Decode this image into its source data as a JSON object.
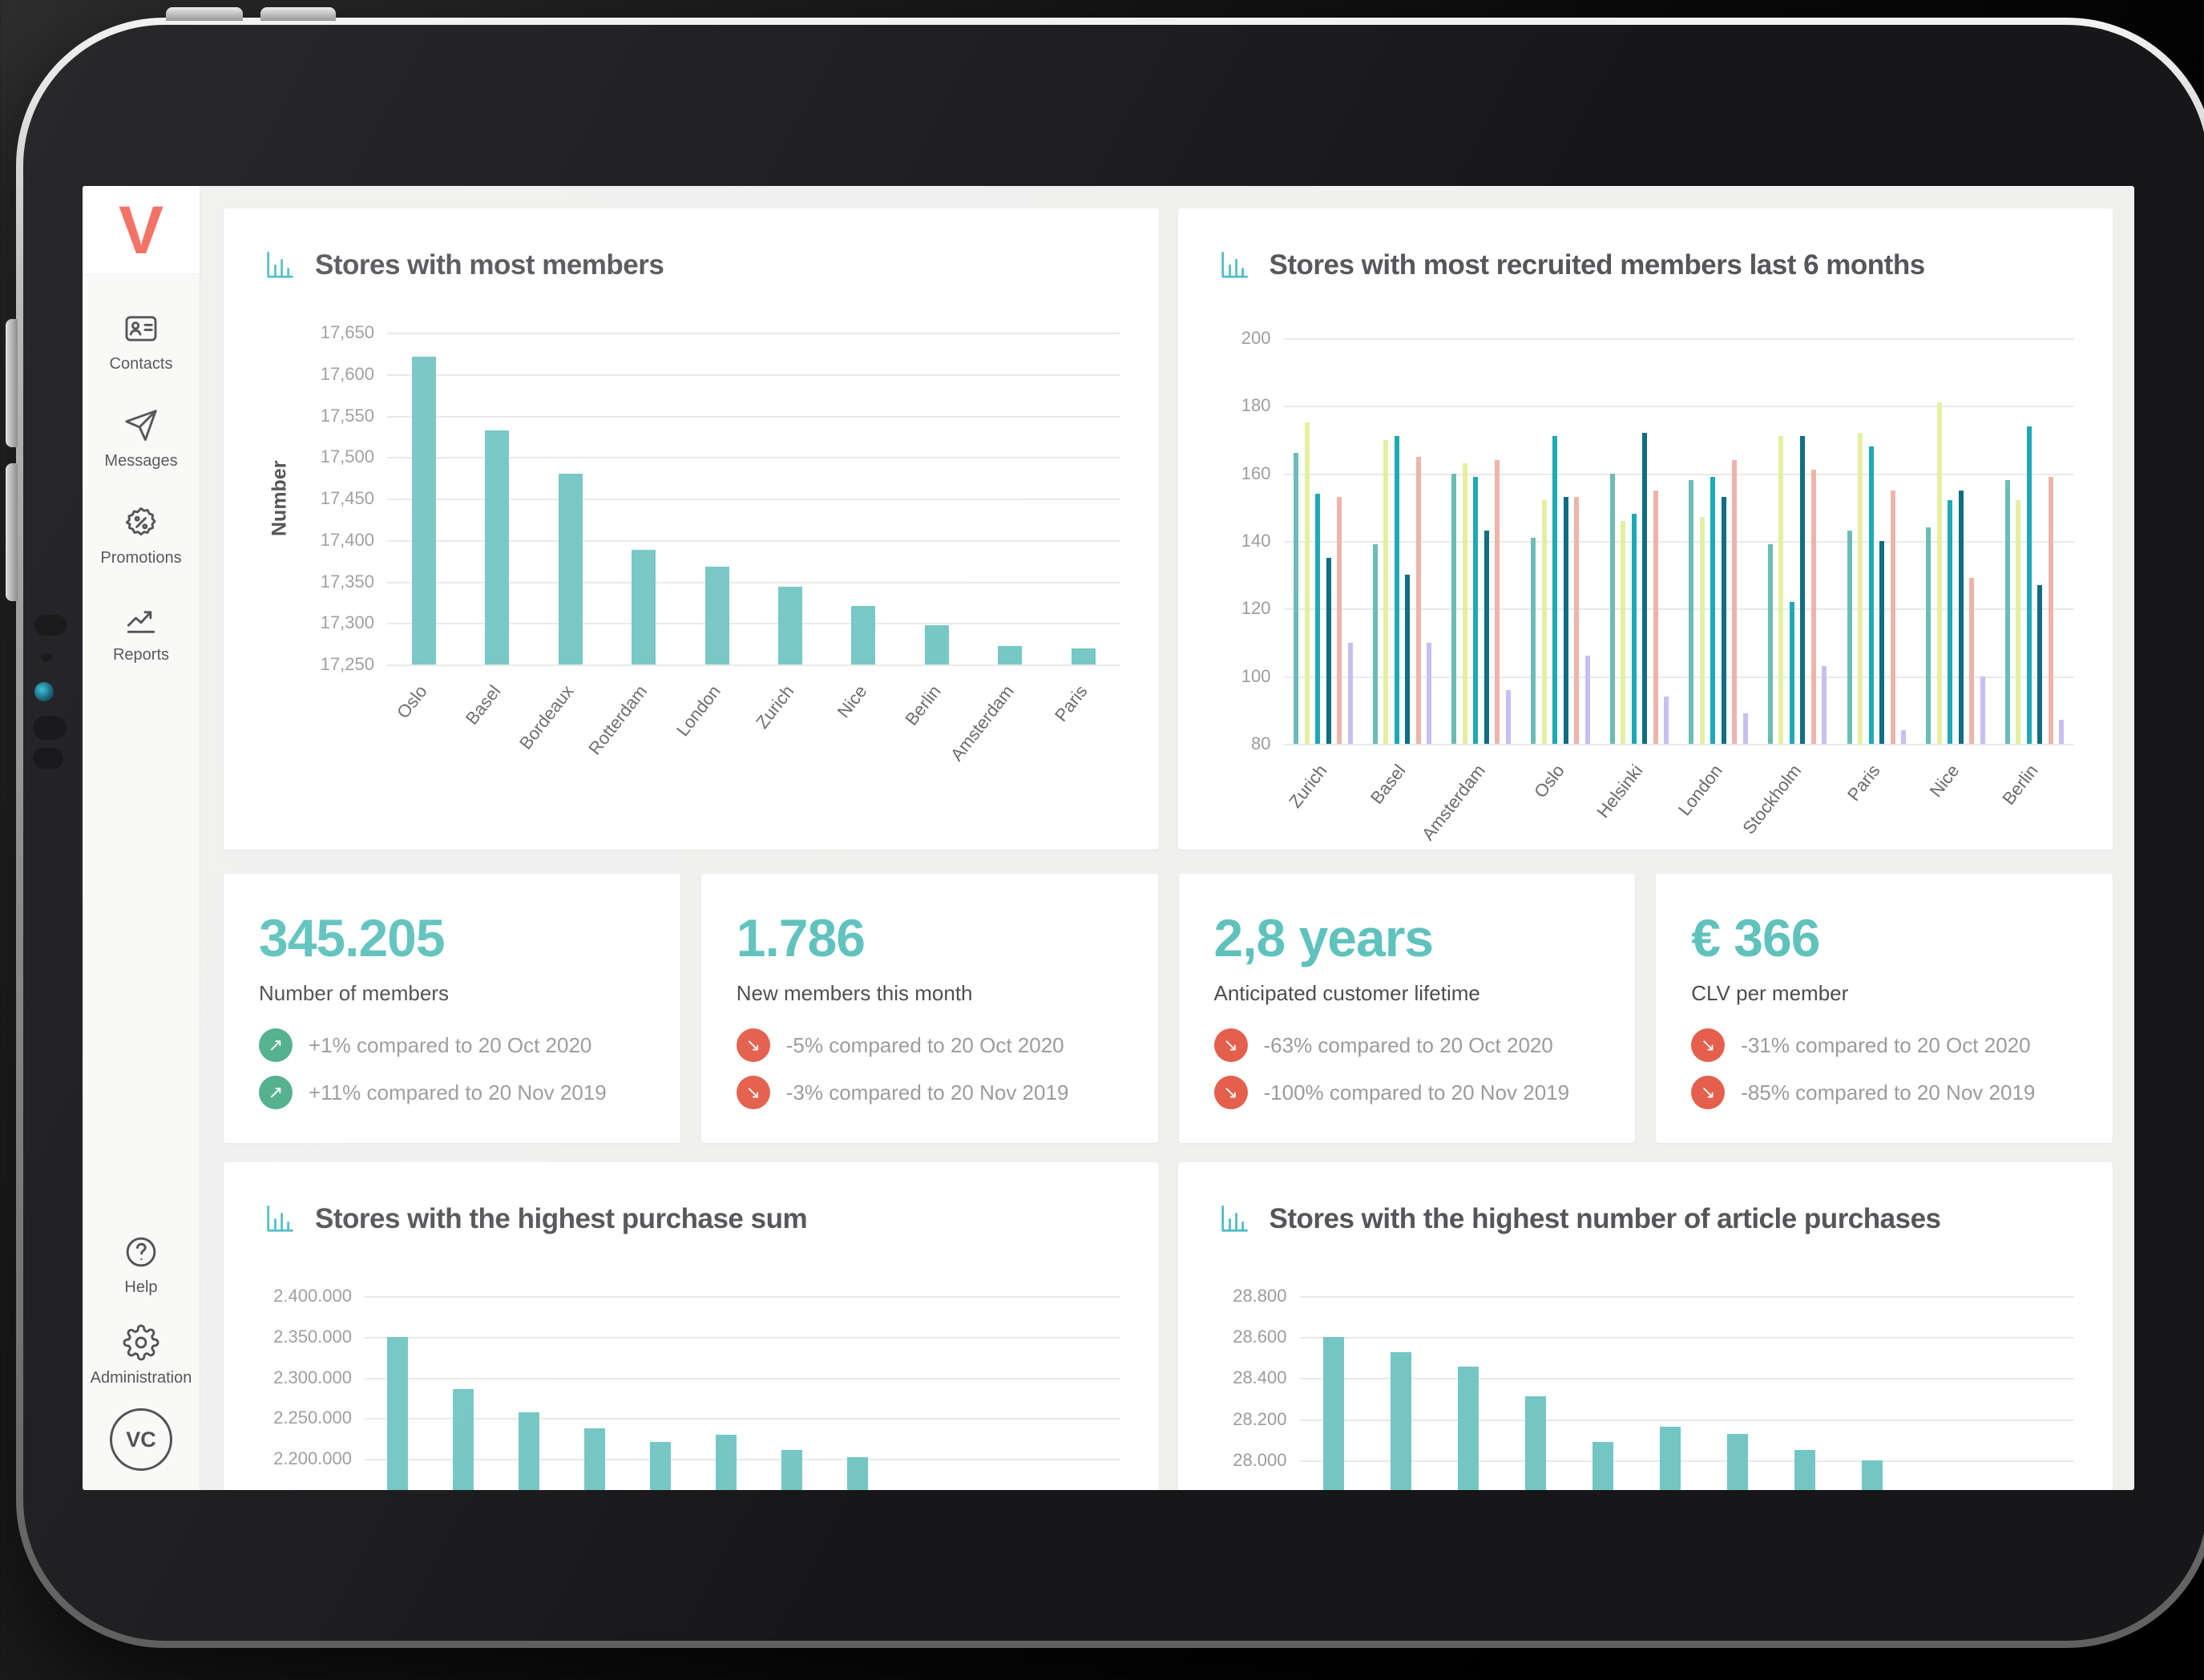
{
  "sidebar": {
    "logo": "V",
    "items": [
      {
        "label": "Contacts",
        "icon": "contacts"
      },
      {
        "label": "Messages",
        "icon": "messages"
      },
      {
        "label": "Promotions",
        "icon": "promotions"
      },
      {
        "label": "Reports",
        "icon": "reports"
      }
    ],
    "bottom_items": [
      {
        "label": "Help",
        "icon": "help"
      },
      {
        "label": "Administration",
        "icon": "administration"
      }
    ],
    "avatar": "VC"
  },
  "kpis": [
    {
      "value": "345.205",
      "label": "Number of members",
      "changes": [
        {
          "trend": "up",
          "icon": "arrow-up-right",
          "text": "+1% compared to 20 Oct 2020"
        },
        {
          "trend": "up",
          "icon": "arrow-up-right",
          "text": "+11% compared to 20 Nov 2019"
        }
      ]
    },
    {
      "value": "1.786",
      "label": "New members this month",
      "changes": [
        {
          "trend": "down",
          "icon": "arrow-down-right",
          "text": "-5% compared to 20 Oct 2020"
        },
        {
          "trend": "down",
          "icon": "arrow-down-right",
          "text": "-3% compared to 20 Nov 2019"
        }
      ]
    },
    {
      "value": "2,8 years",
      "label": "Anticipated customer lifetime",
      "changes": [
        {
          "trend": "down",
          "icon": "arrow-down-right",
          "text": "-63% compared to 20 Oct 2020"
        },
        {
          "trend": "down",
          "icon": "arrow-down-right",
          "text": "-100% compared to 20 Nov 2019"
        }
      ]
    },
    {
      "value": "€ 366",
      "label": "CLV per member",
      "changes": [
        {
          "trend": "down",
          "icon": "arrow-down-right",
          "text": "-31% compared to 20 Oct 2020"
        },
        {
          "trend": "down",
          "icon": "arrow-down-right",
          "text": "-85% compared to 20 Nov 2019"
        }
      ]
    }
  ],
  "chart_data": [
    {
      "id": "most_members",
      "type": "bar",
      "title": "Stores with most members",
      "ylabel": "Number",
      "ymin": 17250,
      "ymax": 17650,
      "tick_step": 50,
      "tick_format": "comma",
      "grid": true,
      "categories": [
        "Oslo",
        "Basel",
        "Bordeaux",
        "Rotterdam",
        "London",
        "Zurich",
        "Nice",
        "Berlin",
        "Amsterdam",
        "Paris"
      ],
      "values": [
        17621,
        17532,
        17480,
        17388,
        17368,
        17344,
        17321,
        17297,
        17272,
        17269
      ]
    },
    {
      "id": "recruited",
      "type": "grouped-bar",
      "title": "Stores with most recruited members last 6 months",
      "ymin": 80,
      "ymax": 200,
      "tick_step": 20,
      "grid": true,
      "categories": [
        "Zurich",
        "Basel",
        "Amsterdam",
        "Oslo",
        "Helsinki",
        "London",
        "Stockholm",
        "Paris",
        "Nice",
        "Berlin"
      ],
      "series_colors": [
        "#6abdb5",
        "#e5efa0",
        "#1fa9b6",
        "#0f6e84",
        "#eeb4ab",
        "#c7bff3"
      ],
      "groups": [
        [
          166,
          175,
          154,
          135,
          153,
          110
        ],
        [
          139,
          170,
          171,
          130,
          165,
          110
        ],
        [
          160,
          163,
          159,
          143,
          164,
          96
        ],
        [
          141,
          152,
          171,
          153,
          153,
          106
        ],
        [
          160,
          146,
          148,
          172,
          155,
          94
        ],
        [
          158,
          147,
          159,
          153,
          164,
          89
        ],
        [
          139,
          171,
          122,
          171,
          161,
          103
        ],
        [
          143,
          172,
          168,
          140,
          155,
          84
        ],
        [
          144,
          181,
          152,
          155,
          129,
          100
        ],
        [
          158,
          152,
          174,
          127,
          159,
          87
        ]
      ]
    },
    {
      "id": "purchase_sum",
      "type": "bar",
      "title": "Stores with the highest purchase sum",
      "ymin": 2148000,
      "ymax": 2400000,
      "tick_min": 2200000,
      "tick_step": 50000,
      "tick_format": "dot",
      "grid": true,
      "clipped": true,
      "slots": 11.5,
      "show_xlabels": false,
      "values": [
        2350000,
        2286000,
        2257000,
        2238000,
        2221000,
        2230000,
        2211000,
        2202000
      ]
    },
    {
      "id": "article_purchases",
      "type": "bar",
      "title": "Stores with the highest number of article purchases",
      "ymin": 27800,
      "ymax": 28800,
      "tick_min": 28000,
      "tick_step": 200,
      "tick_format": "dot",
      "grid": true,
      "clipped": true,
      "slots": 11.5,
      "show_xlabels": false,
      "values": [
        28600,
        28527,
        28457,
        28310,
        28090,
        28163,
        28127,
        28050,
        27998
      ]
    }
  ],
  "colors": {
    "teal": "#5fc2bd",
    "bar_teal": "#74c6c4",
    "green": "#4fae8c",
    "red": "#e4604c",
    "coral": "#f4685c",
    "title_gray": "#55565a",
    "tick_gray": "#9c9c9c",
    "xlabel_gray": "#6a6a6a",
    "grid_gray": "#e9e9e8",
    "change_gray": "#9b9b9b",
    "side_gray": "#4f4f4f",
    "screen_bg": "#f0f0ef",
    "sidebar_bg": "#f9f9f8",
    "card_bg": "#ffffff"
  }
}
